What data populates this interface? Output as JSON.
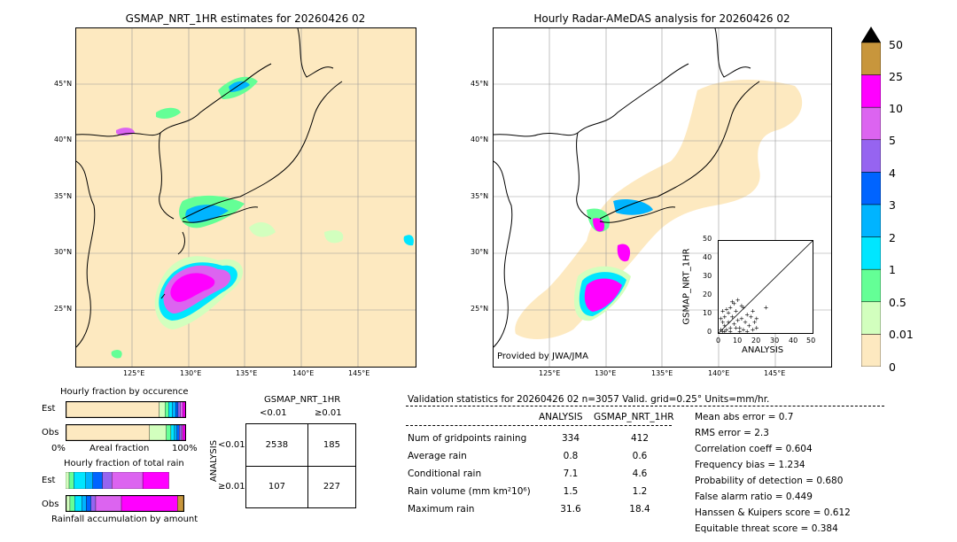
{
  "titles": {
    "left_map": "GSMAP_NRT_1HR estimates for 20260426 02",
    "right_map": "Hourly Radar-AMeDAS analysis for 20260426 02"
  },
  "map_axes": {
    "lat_labels": [
      "45°N",
      "40°N",
      "35°N",
      "30°N",
      "25°N"
    ],
    "lon_labels": [
      "125°E",
      "130°E",
      "135°E",
      "140°E",
      "145°E"
    ]
  },
  "provided_by": "Provided by JWA/JMA",
  "colorbar": {
    "labels": [
      "50",
      "25",
      "10",
      "5",
      "4",
      "3",
      "2",
      "1",
      "0.5",
      "0.01",
      "0"
    ],
    "colors": [
      "#c8963c",
      "#ff00ff",
      "#dc64f0",
      "#9664f0",
      "#0064ff",
      "#00b4ff",
      "#00e6ff",
      "#64ff96",
      "#d2ffbe",
      "#fde9c0"
    ],
    "extend_color": "#000000"
  },
  "chart_data": [
    {
      "type": "scatter",
      "title": "",
      "xlabel": "ANALYSIS",
      "ylabel": "GSMAP_NRT_1HR",
      "xlim": [
        0,
        50
      ],
      "ylim": [
        0,
        50
      ],
      "ticks": [
        "0",
        "10",
        "20",
        "30",
        "40",
        "50"
      ],
      "points": [
        [
          1,
          2
        ],
        [
          2,
          1
        ],
        [
          3,
          4
        ],
        [
          4,
          2
        ],
        [
          5,
          6
        ],
        [
          6,
          3
        ],
        [
          7,
          9
        ],
        [
          8,
          5
        ],
        [
          9,
          12
        ],
        [
          10,
          7
        ],
        [
          11,
          3
        ],
        [
          12,
          8
        ],
        [
          13,
          14
        ],
        [
          14,
          6
        ],
        [
          15,
          10
        ],
        [
          16,
          4
        ],
        [
          17,
          9
        ],
        [
          18,
          12
        ],
        [
          19,
          6
        ],
        [
          20,
          8
        ],
        [
          2,
          6
        ],
        [
          3,
          9
        ],
        [
          5,
          11
        ],
        [
          6,
          14
        ],
        [
          8,
          16
        ],
        [
          10,
          18
        ],
        [
          12,
          15
        ],
        [
          4,
          13
        ],
        [
          7,
          17
        ],
        [
          1,
          8
        ],
        [
          2,
          12
        ],
        [
          9,
          3
        ],
        [
          11,
          1
        ],
        [
          13,
          2
        ],
        [
          15,
          1
        ],
        [
          18,
          2
        ],
        [
          20,
          3
        ],
        [
          25,
          14
        ],
        [
          6,
          1
        ],
        [
          3,
          1
        ]
      ]
    },
    {
      "type": "bar",
      "title": "Hourly fraction by occurence",
      "rows": [
        "Est",
        "Obs"
      ],
      "xticks": [
        "0%",
        "100%"
      ],
      "xlabel": "Areal fraction",
      "stacks": [
        {
          "row": "Est",
          "colors": [
            "#fde9c0",
            "#d2ffbe",
            "#64ff96",
            "#00e6ff",
            "#00b4ff",
            "#0064ff",
            "#9664f0",
            "#dc64f0",
            "#ff00ff"
          ],
          "fractions": [
            0.78,
            0.05,
            0.03,
            0.03,
            0.03,
            0.02,
            0.02,
            0.02,
            0.02
          ]
        },
        {
          "row": "Obs",
          "colors": [
            "#fde9c0",
            "#d2ffbe",
            "#64ff96",
            "#00e6ff",
            "#00b4ff",
            "#0064ff",
            "#9664f0",
            "#dc64f0",
            "#ff00ff"
          ],
          "fractions": [
            0.7,
            0.14,
            0.04,
            0.03,
            0.02,
            0.02,
            0.02,
            0.01,
            0.02
          ]
        }
      ]
    },
    {
      "type": "bar",
      "title": "Hourly fraction of total rain",
      "rows": [
        "Est",
        "Obs"
      ],
      "xlabel": "Rainfall accumulation by amount",
      "stacks": [
        {
          "row": "Est",
          "colors": [
            "#d2ffbe",
            "#64ff96",
            "#00e6ff",
            "#00b4ff",
            "#0064ff",
            "#9664f0",
            "#dc64f0",
            "#ff00ff"
          ],
          "fractions": [
            0.03,
            0.04,
            0.1,
            0.06,
            0.08,
            0.08,
            0.26,
            0.22
          ]
        },
        {
          "row": "Obs",
          "colors": [
            "#d2ffbe",
            "#64ff96",
            "#00e6ff",
            "#00b4ff",
            "#0064ff",
            "#9664f0",
            "#dc64f0",
            "#ff00ff",
            "#c8963c"
          ],
          "fractions": [
            0.03,
            0.04,
            0.06,
            0.04,
            0.04,
            0.04,
            0.22,
            0.48,
            0.05
          ]
        }
      ]
    }
  ],
  "contingency": {
    "title": "GSMAP_NRT_1HR",
    "col_headers": [
      "<0.01",
      "≥0.01"
    ],
    "row_headers": [
      "<0.01",
      "≥0.01"
    ],
    "side_label": "ANALYSIS",
    "cells": [
      [
        "2538",
        "185"
      ],
      [
        "107",
        "227"
      ]
    ]
  },
  "validation": {
    "header": "Validation statistics for 20260426 02  n=3057 Valid. grid=0.25° Units=mm/hr.",
    "col_analysis": "ANALYSIS",
    "col_gsmap": "GSMAP_NRT_1HR",
    "rows": [
      {
        "label": "Num of gridpoints raining",
        "analysis": "334",
        "gsmap": "412"
      },
      {
        "label": "Average rain",
        "analysis": "0.8",
        "gsmap": "0.6"
      },
      {
        "label": "Conditional rain",
        "analysis": "7.1",
        "gsmap": "4.6"
      },
      {
        "label": "Rain volume (mm km²10⁶)",
        "analysis": "1.5",
        "gsmap": "1.2"
      },
      {
        "label": "Maximum rain",
        "analysis": "31.6",
        "gsmap": "18.4"
      }
    ],
    "scores": [
      "Mean abs error =    0.7",
      "RMS error =    2.3",
      "Correlation coeff =  0.604",
      "Frequency bias =  1.234",
      "Probability of detection =  0.680",
      "False alarm ratio =  0.449",
      "Hanssen & Kuipers score =  0.612",
      "Equitable threat score =  0.384"
    ]
  }
}
